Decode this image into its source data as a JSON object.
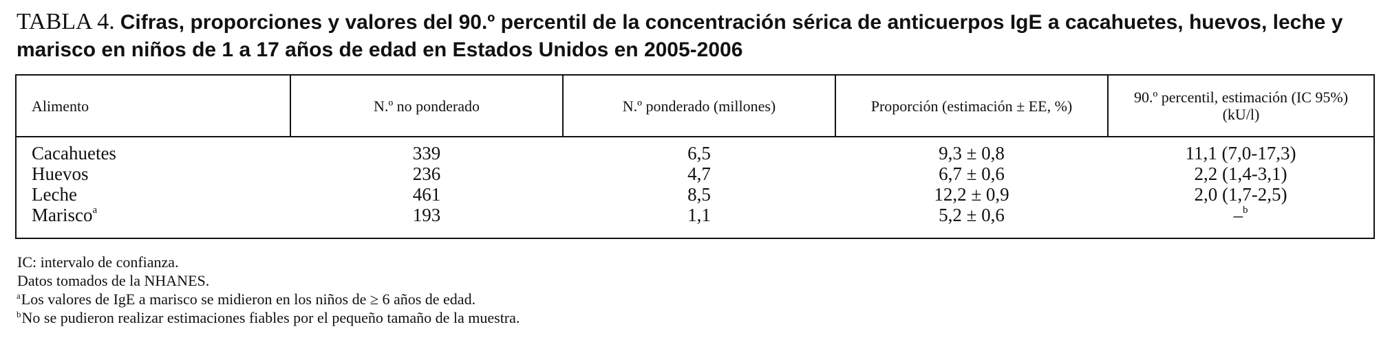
{
  "title": {
    "label": "TABLA 4.",
    "text": "Cifras, proporciones y valores del 90.º percentil de la concentración sérica de anticuerpos IgE a cacahuetes, huevos, leche y marisco en niños de 1 a 17 años de edad en Estados Unidos en 2005-2006"
  },
  "table": {
    "headers": [
      "Alimento",
      "N.º no ponderado",
      "N.º ponderado (millones)",
      "Proporción (estimación ± EE, %)",
      "90.º percentil, estimación (IC 95%) (kU/l)"
    ],
    "rows": [
      {
        "food": "Cacahuetes",
        "food_mark": "",
        "unweighted": "339",
        "weighted": "6,5",
        "proportion": "9,3 ± 0,8",
        "percentile": "11,1 (7,0-17,3)",
        "percentile_mark": ""
      },
      {
        "food": "Huevos",
        "food_mark": "",
        "unweighted": "236",
        "weighted": "4,7",
        "proportion": "6,7 ± 0,6",
        "percentile": "2,2 (1,4-3,1)",
        "percentile_mark": ""
      },
      {
        "food": "Leche",
        "food_mark": "",
        "unweighted": "461",
        "weighted": "8,5",
        "proportion": "12,2 ± 0,9",
        "percentile": "2,0 (1,7-2,5)",
        "percentile_mark": ""
      },
      {
        "food": "Marisco",
        "food_mark": "a",
        "unweighted": "193",
        "weighted": "1,1",
        "proportion": "5,2 ± 0,6",
        "percentile": "–",
        "percentile_mark": "b"
      }
    ]
  },
  "notes": [
    {
      "mark": "",
      "text": "IC: intervalo de confianza."
    },
    {
      "mark": "",
      "text": "Datos tomados de la NHANES."
    },
    {
      "mark": "a",
      "text": "Los valores de IgE a marisco se midieron en los niños de ≥ 6 años de edad."
    },
    {
      "mark": "b",
      "text": "No se pudieron realizar estimaciones fiables por el pequeño tamaño de la muestra."
    }
  ]
}
